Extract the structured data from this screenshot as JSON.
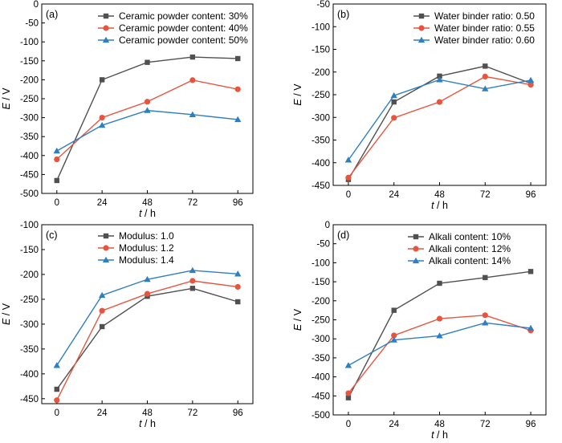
{
  "chart_data": [
    {
      "type": "line",
      "panel_label": "(a)",
      "xlabel_var": "t",
      "xlabel_unit": " / h",
      "ylabel_var": "E",
      "ylabel_unit": " / V",
      "categories": [
        "0",
        "24",
        "48",
        "72",
        "96"
      ],
      "x": [
        0,
        24,
        48,
        72,
        96
      ],
      "xlim": [
        -8,
        104
      ],
      "ylim": [
        -500,
        0
      ],
      "yticks": [
        0,
        -50,
        -100,
        -150,
        -200,
        -250,
        -300,
        -350,
        -400,
        -450,
        -500
      ],
      "legend": "top-right",
      "grid": false,
      "series": [
        {
          "name": "Ceramic powder content: 30%",
          "color": "#505050",
          "marker": "square",
          "values": [
            -466,
            -200,
            -154,
            -140,
            -144
          ]
        },
        {
          "name": "Ceramic powder content: 40%",
          "color": "#e8553f",
          "marker": "circle",
          "values": [
            -410,
            -300,
            -258,
            -201,
            -225
          ]
        },
        {
          "name": "Ceramic powder content: 50%",
          "color": "#2e7fc2",
          "marker": "triangle",
          "values": [
            -388,
            -320,
            -281,
            -292,
            -305
          ]
        }
      ]
    },
    {
      "type": "line",
      "panel_label": "(b)",
      "xlabel_var": "t",
      "xlabel_unit": " / h",
      "ylabel_var": "E",
      "ylabel_unit": " / V",
      "categories": [
        "0",
        "24",
        "48",
        "72",
        "96"
      ],
      "x": [
        0,
        24,
        48,
        72,
        96
      ],
      "xlim": [
        -8,
        104
      ],
      "ylim": [
        -450,
        -50
      ],
      "yticks": [
        -50,
        -100,
        -150,
        -200,
        -250,
        -300,
        -350,
        -400,
        -450
      ],
      "legend": "top-right",
      "grid": false,
      "series": [
        {
          "name": "Water binder ratio: 0.50",
          "color": "#505050",
          "marker": "square",
          "values": [
            -437,
            -266,
            -209,
            -187,
            -225
          ]
        },
        {
          "name": "Water binder ratio: 0.55",
          "color": "#e8553f",
          "marker": "circle",
          "values": [
            -433,
            -301,
            -266,
            -210,
            -228
          ]
        },
        {
          "name": "Water binder ratio: 0.60",
          "color": "#2e7fc2",
          "marker": "triangle",
          "values": [
            -394,
            -252,
            -217,
            -237,
            -218
          ]
        }
      ]
    },
    {
      "type": "line",
      "panel_label": "(c)",
      "xlabel_var": "t",
      "xlabel_unit": " / h",
      "ylabel_var": "E",
      "ylabel_unit": " / V",
      "categories": [
        "0",
        "24",
        "48",
        "72",
        "96"
      ],
      "x": [
        0,
        24,
        48,
        72,
        96
      ],
      "xlim": [
        -8,
        104
      ],
      "ylim": [
        -460,
        -100
      ],
      "yticks": [
        -100,
        -150,
        -200,
        -250,
        -300,
        -350,
        -400,
        -450
      ],
      "legend": "top-left",
      "grid": false,
      "series": [
        {
          "name": "Modulus: 1.0",
          "color": "#505050",
          "marker": "square",
          "values": [
            -431,
            -305,
            -244,
            -228,
            -255
          ]
        },
        {
          "name": "Modulus: 1.2",
          "color": "#e8553f",
          "marker": "circle",
          "values": [
            -453,
            -273,
            -239,
            -213,
            -225
          ]
        },
        {
          "name": "Modulus: 1.4",
          "color": "#2e7fc2",
          "marker": "triangle",
          "values": [
            -383,
            -242,
            -210,
            -192,
            -199
          ]
        }
      ]
    },
    {
      "type": "line",
      "panel_label": "(d)",
      "xlabel_var": "t",
      "xlabel_unit": " / h",
      "ylabel_var": "E",
      "ylabel_unit": " / V",
      "categories": [
        "0",
        "24",
        "48",
        "72",
        "96"
      ],
      "x": [
        0,
        24,
        48,
        72,
        96
      ],
      "xlim": [
        -8,
        104
      ],
      "ylim": [
        -500,
        0
      ],
      "yticks": [
        0,
        -50,
        -100,
        -150,
        -200,
        -250,
        -300,
        -350,
        -400,
        -450,
        -500
      ],
      "legend": "top-center",
      "grid": false,
      "series": [
        {
          "name": "Alkali content: 10%",
          "color": "#505050",
          "marker": "square",
          "values": [
            -455,
            -225,
            -154,
            -139,
            -123
          ]
        },
        {
          "name": "Alkali content: 12%",
          "color": "#e8553f",
          "marker": "circle",
          "values": [
            -443,
            -291,
            -247,
            -238,
            -278
          ]
        },
        {
          "name": "Alkali content: 14%",
          "color": "#2e7fc2",
          "marker": "triangle",
          "values": [
            -370,
            -303,
            -292,
            -258,
            -272
          ]
        }
      ]
    }
  ]
}
